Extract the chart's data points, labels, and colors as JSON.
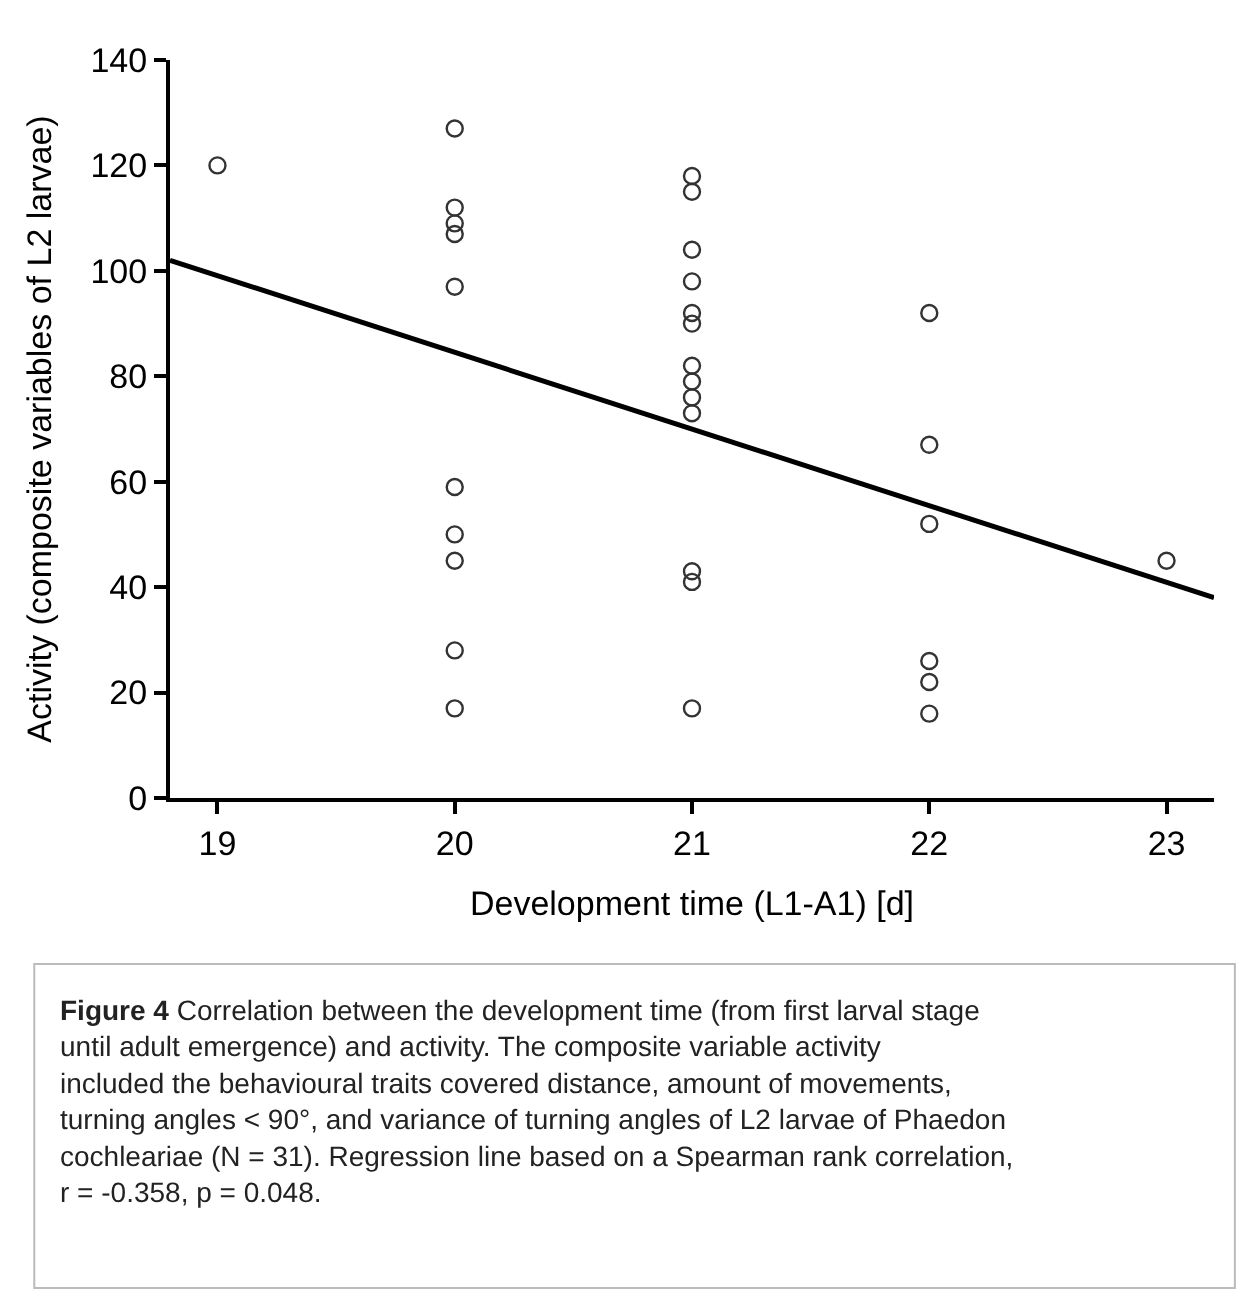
{
  "chart_data": {
    "type": "scatter",
    "xlabel": "Development time (L1-A1) [d]",
    "ylabel": "Activity (composite variables of L2 larvae)",
    "xlim": [
      18.8,
      23.2
    ],
    "xticks": [
      19,
      20,
      21,
      22,
      23
    ],
    "ylim": [
      0,
      140
    ],
    "yticks": [
      0,
      20,
      40,
      60,
      80,
      100,
      120,
      140
    ],
    "series": [
      {
        "marker": "circle",
        "color": "#333333",
        "x": [
          19,
          20,
          20,
          20,
          20,
          20,
          20,
          20,
          20,
          20,
          20,
          21,
          21,
          21,
          21,
          21,
          21,
          21,
          21,
          21,
          21,
          21,
          21,
          21,
          22,
          22,
          22,
          22,
          22,
          22,
          23
        ],
        "values": [
          120,
          127,
          112,
          109,
          107,
          97,
          59,
          50,
          45,
          28,
          17,
          118,
          115,
          104,
          98,
          92,
          90,
          82,
          79,
          76,
          73,
          43,
          41,
          17,
          92,
          67,
          52,
          26,
          22,
          16,
          45
        ]
      },
      {
        "type": "line",
        "marker": "none",
        "color": "#000000",
        "line_style": "solid",
        "x": [
          18.8,
          23.2
        ],
        "values": [
          102,
          38
        ]
      }
    ],
    "annotations": [
      "Figure 4",
      "Correlation between the development time (from first larval stage until adult emergence) and activity. The composite variable activity included the behavioural traits covered distance, amount of movements, turning angles < 90°, and variance of turning angles of L2 larvae of Phaedon cochleariae (N = 31). Regression line based on a Spearman rank correlation, r = -0.358, p = 0.048."
    ]
  }
}
